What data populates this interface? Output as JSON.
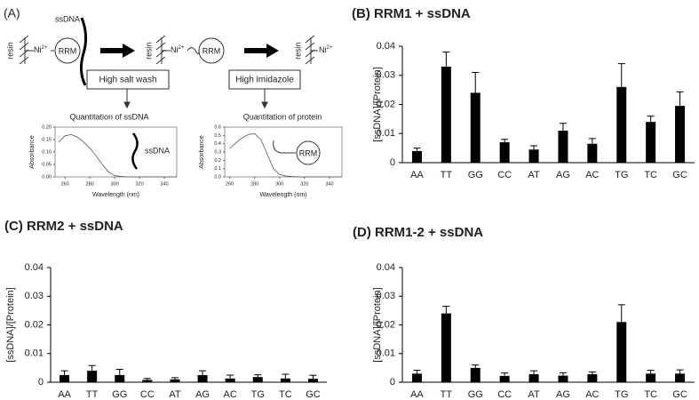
{
  "diagram": {
    "panel": "(A)",
    "resin": "resin",
    "ni": "Ni",
    "charge": "2+",
    "rrm": "RRM",
    "ssdna": "ssDNA",
    "step1": "High salt wash",
    "step2": "High imidazole"
  },
  "chart_data": [
    {
      "type": "bar",
      "title": "(B) RRM1 + ssDNA",
      "ylabel": "[ssDNA]/[Protein]",
      "categories": [
        "AA",
        "TT",
        "GG",
        "CC",
        "AT",
        "AG",
        "AC",
        "TG",
        "TC",
        "GC"
      ],
      "series": [
        {
          "color": "#000000",
          "values": [
            0.004,
            0.033,
            0.024,
            0.007,
            0.0045,
            0.011,
            0.0065,
            0.026,
            0.014,
            0.0195
          ],
          "errors": [
            0.001,
            0.005,
            0.007,
            0.001,
            0.0013,
            0.0025,
            0.0018,
            0.008,
            0.002,
            0.0048
          ]
        }
      ],
      "ylim": [
        0,
        0.04
      ],
      "yticks": [
        0,
        0.01,
        0.02,
        0.03,
        0.04
      ]
    },
    {
      "type": "bar",
      "title": "(C) RRM2 + ssDNA",
      "ylabel": "[ssDNA]/[Protein]",
      "categories": [
        "AA",
        "TT",
        "GG",
        "CC",
        "AT",
        "AG",
        "AC",
        "TG",
        "TC",
        "GC"
      ],
      "series": [
        {
          "color": "#000000",
          "values": [
            0.0025,
            0.004,
            0.0025,
            0.0008,
            0.001,
            0.0025,
            0.0013,
            0.0018,
            0.0013,
            0.0012
          ],
          "errors": [
            0.0015,
            0.0018,
            0.002,
            0.0005,
            0.0006,
            0.0015,
            0.0012,
            0.0008,
            0.0015,
            0.0012
          ]
        }
      ],
      "ylim": [
        0,
        0.04
      ],
      "yticks": [
        0,
        0.01,
        0.02,
        0.03,
        0.04
      ]
    },
    {
      "type": "bar",
      "title": "(D) RRM1-2 + ssDNA",
      "ylabel": "[ssDNA]/[Protein]",
      "categories": [
        "AA",
        "TT",
        "GG",
        "CC",
        "AT",
        "AG",
        "AC",
        "TG",
        "TC",
        "GC"
      ],
      "series": [
        {
          "color": "#000000",
          "values": [
            0.003,
            0.024,
            0.005,
            0.0022,
            0.0028,
            0.0023,
            0.0028,
            0.021,
            0.003,
            0.003
          ],
          "errors": [
            0.0012,
            0.0025,
            0.001,
            0.001,
            0.0012,
            0.001,
            0.0008,
            0.006,
            0.0012,
            0.0013
          ]
        }
      ],
      "ylim": [
        0,
        0.04
      ],
      "yticks": [
        0,
        0.01,
        0.02,
        0.03,
        0.04
      ]
    },
    {
      "type": "line",
      "title": "Quantitation of ssDNA",
      "xlabel": "Wavelength (nm)",
      "ylabel": "Absorbance",
      "inset": "ssDNA",
      "color": "#555555",
      "x": [
        255,
        260,
        265,
        270,
        275,
        280,
        285,
        290,
        295,
        300,
        305,
        310,
        315,
        320,
        325,
        330,
        335,
        340,
        345,
        350
      ],
      "values": [
        0.14,
        0.165,
        0.17,
        0.16,
        0.14,
        0.115,
        0.085,
        0.05,
        0.02,
        0.005,
        0.002,
        0,
        0,
        0,
        0,
        0,
        0,
        0,
        0,
        0
      ],
      "xlim": [
        252,
        350
      ],
      "xticks": [
        260,
        280,
        300,
        320,
        340
      ],
      "ylim": [
        0,
        0.2
      ],
      "yticks": [
        {
          "value": 0,
          "label": "0.00"
        },
        {
          "value": 0.05,
          "label": "0.05"
        },
        {
          "value": 0.1,
          "label": "0.10"
        },
        {
          "value": 0.15,
          "label": "0.15"
        },
        {
          "value": 0.2,
          "label": "0.20"
        }
      ]
    },
    {
      "type": "line",
      "title": "Quantitation of protein",
      "xlabel": "Wavelength (nm)",
      "ylabel": "Absorbance",
      "inset": "RRM",
      "color": "#555555",
      "x": [
        260,
        265,
        270,
        275,
        280,
        285,
        290,
        295,
        300,
        305,
        310,
        315,
        320,
        325,
        330,
        335,
        340,
        345,
        350
      ],
      "values": [
        0.34,
        0.41,
        0.47,
        0.51,
        0.52,
        0.45,
        0.28,
        0.1,
        0.03,
        0.01,
        0.005,
        0,
        0,
        0,
        0,
        0,
        0,
        0,
        0
      ],
      "xlim": [
        256,
        350
      ],
      "xticks": [
        260,
        280,
        300,
        320,
        340
      ],
      "ylim": [
        0,
        0.6
      ],
      "yticks": [
        {
          "value": 0,
          "label": "0.0"
        },
        {
          "value": 0.1,
          "label": "0.1"
        },
        {
          "value": 0.2,
          "label": "0.2"
        },
        {
          "value": 0.3,
          "label": "0.3"
        },
        {
          "value": 0.4,
          "label": "0.4"
        },
        {
          "value": 0.5,
          "label": "0.5"
        },
        {
          "value": 0.6,
          "label": "0.6"
        }
      ]
    }
  ]
}
